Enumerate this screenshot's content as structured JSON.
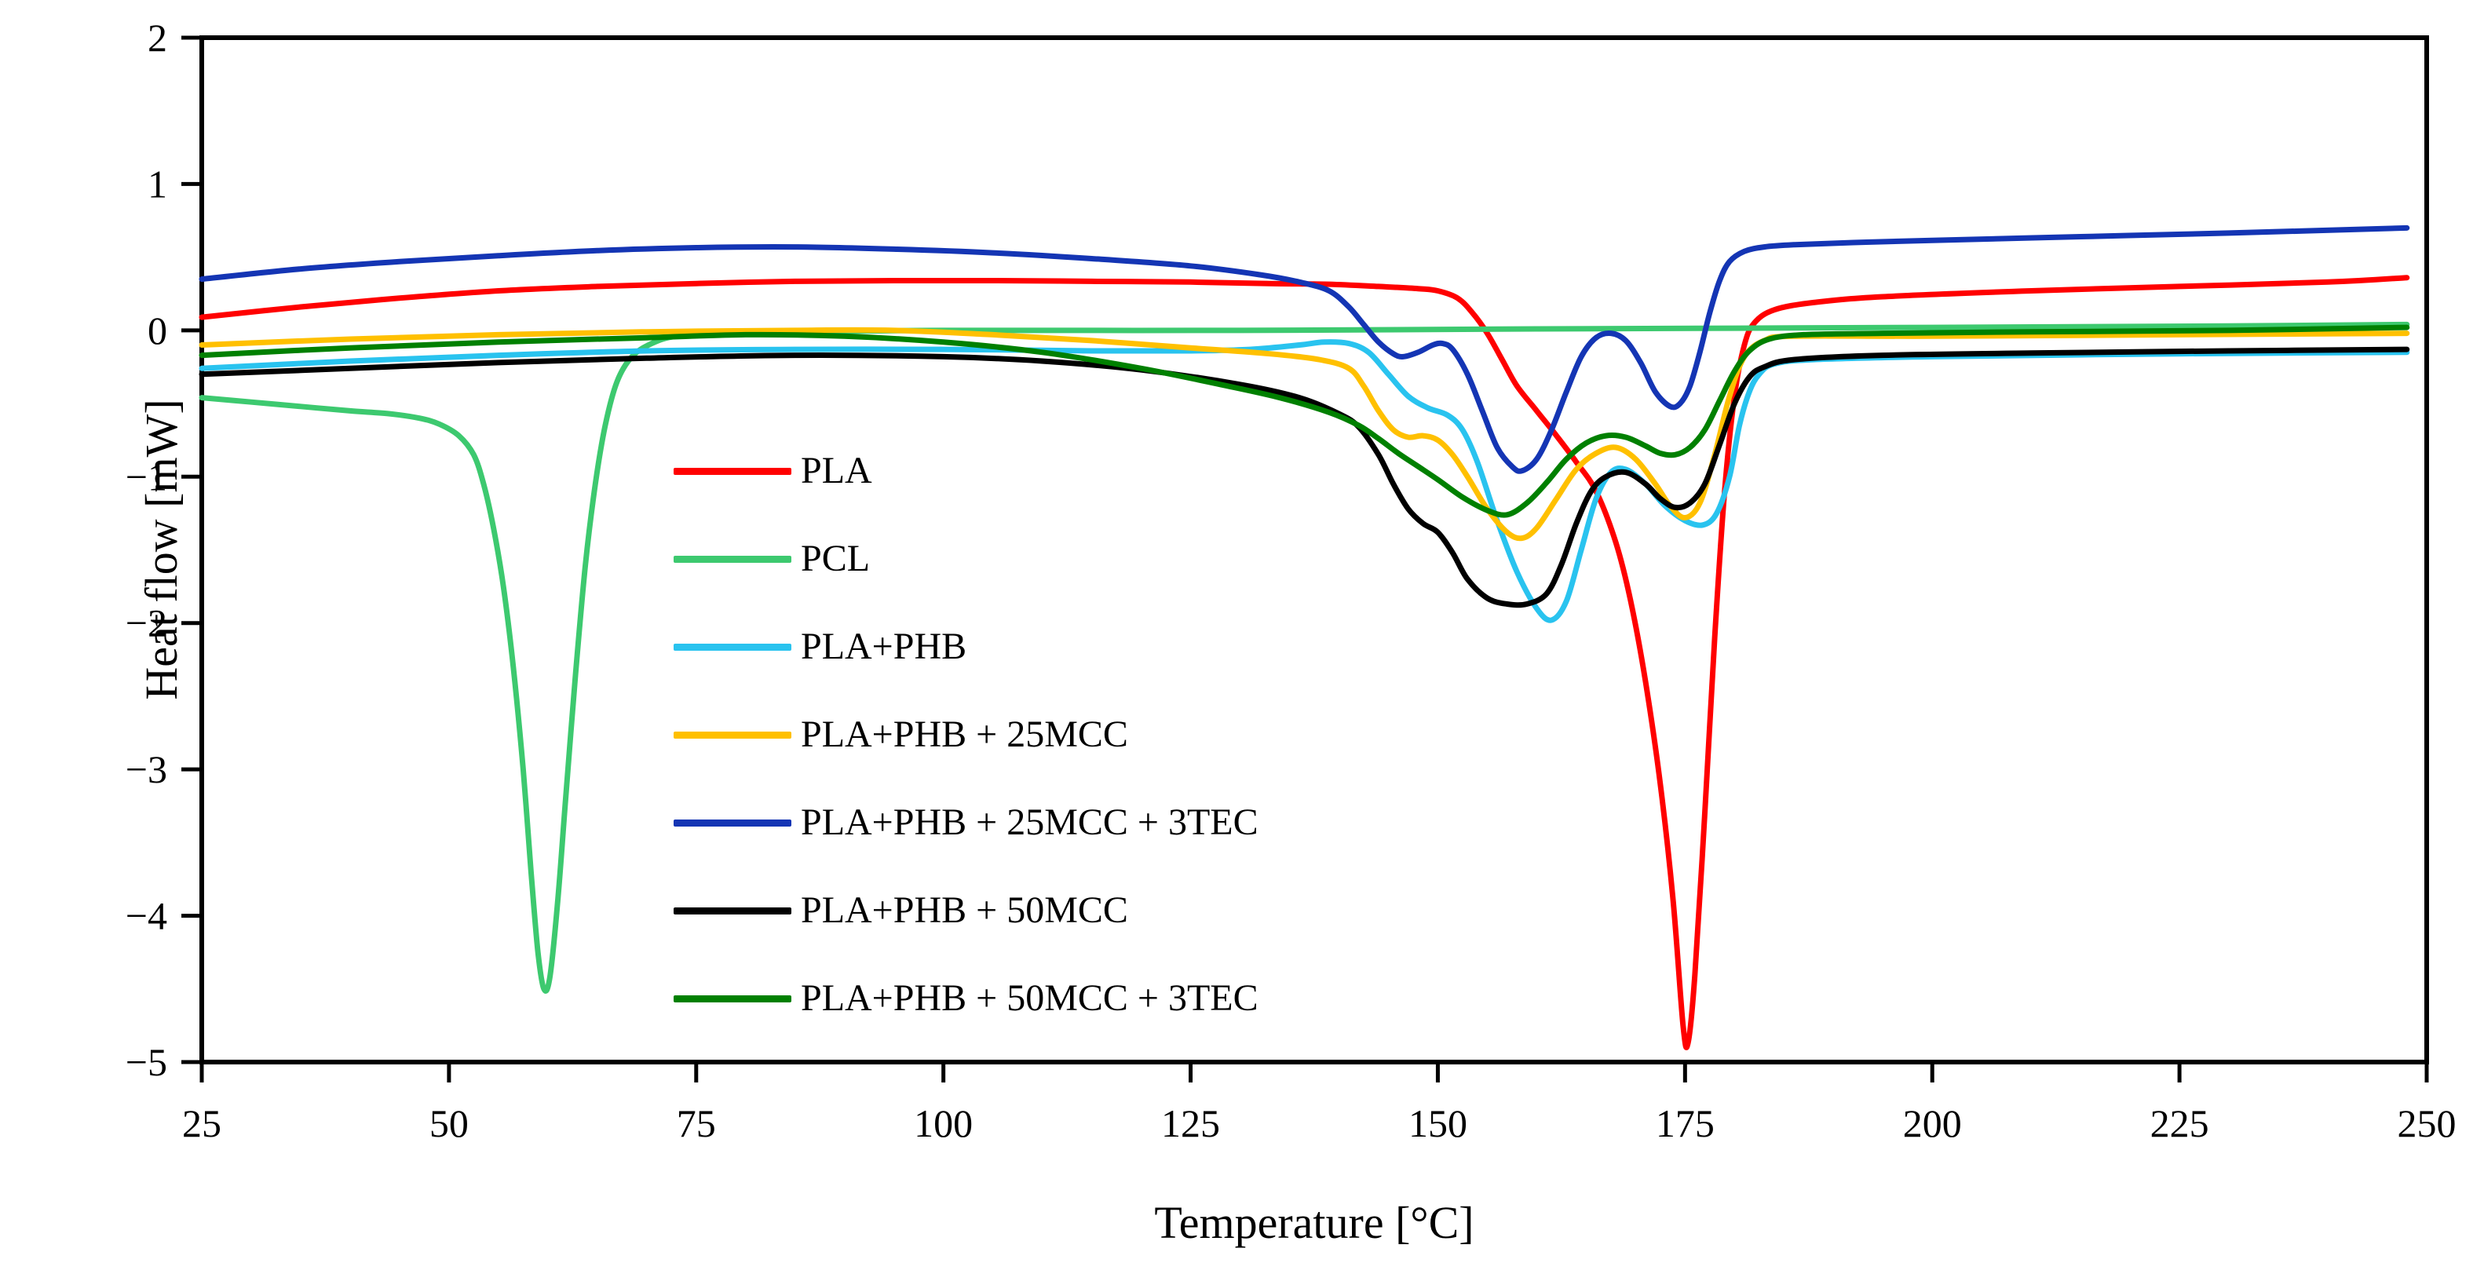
{
  "figure": {
    "background": "#FFFFFF"
  },
  "chart_data": {
    "type": "line",
    "title": "",
    "xlabel": "Temperature [°C]",
    "ylabel": "Heat flow [mW]",
    "xlim": [
      25,
      250
    ],
    "ylim": [
      -5,
      2
    ],
    "x_ticks": [
      25,
      50,
      75,
      100,
      125,
      150,
      175,
      200,
      225,
      250
    ],
    "y_ticks": [
      2,
      1,
      0,
      -1,
      -2,
      -3,
      -4,
      -5
    ],
    "grid": false,
    "legend_position": "inside-left-middle",
    "axis_color": "#000000",
    "series": [
      {
        "name": "PLA",
        "color": "#FF0000",
        "points": [
          [
            25,
            0.09
          ],
          [
            35,
            0.16
          ],
          [
            45,
            0.22
          ],
          [
            55,
            0.27
          ],
          [
            65,
            0.3
          ],
          [
            75,
            0.32
          ],
          [
            85,
            0.335
          ],
          [
            95,
            0.34
          ],
          [
            105,
            0.34
          ],
          [
            115,
            0.335
          ],
          [
            125,
            0.33
          ],
          [
            133,
            0.32
          ],
          [
            139,
            0.315
          ],
          [
            144,
            0.3
          ],
          [
            148,
            0.285
          ],
          [
            150,
            0.27
          ],
          [
            152,
            0.22
          ],
          [
            153.5,
            0.12
          ],
          [
            155,
            -0.02
          ],
          [
            156.5,
            -0.2
          ],
          [
            158,
            -0.38
          ],
          [
            160,
            -0.55
          ],
          [
            162,
            -0.72
          ],
          [
            164,
            -0.9
          ],
          [
            166,
            -1.1
          ],
          [
            168,
            -1.45
          ],
          [
            169.5,
            -1.85
          ],
          [
            171,
            -2.4
          ],
          [
            172.5,
            -3.1
          ],
          [
            173.8,
            -3.9
          ],
          [
            174.8,
            -4.75
          ],
          [
            175.3,
            -4.87
          ],
          [
            176,
            -4.4
          ],
          [
            177,
            -3.3
          ],
          [
            178,
            -2.1
          ],
          [
            179,
            -1.1
          ],
          [
            180,
            -0.45
          ],
          [
            181,
            -0.1
          ],
          [
            182,
            0.05
          ],
          [
            184,
            0.14
          ],
          [
            188,
            0.19
          ],
          [
            195,
            0.23
          ],
          [
            210,
            0.27
          ],
          [
            225,
            0.3
          ],
          [
            240,
            0.33
          ],
          [
            248,
            0.36
          ]
        ]
      },
      {
        "name": "PCL",
        "color": "#3DC96F",
        "points": [
          [
            25,
            -0.46
          ],
          [
            30,
            -0.49
          ],
          [
            35,
            -0.52
          ],
          [
            40,
            -0.55
          ],
          [
            44,
            -0.57
          ],
          [
            47,
            -0.6
          ],
          [
            49,
            -0.64
          ],
          [
            51,
            -0.72
          ],
          [
            52.5,
            -0.85
          ],
          [
            53.5,
            -1.05
          ],
          [
            54.5,
            -1.35
          ],
          [
            55.5,
            -1.75
          ],
          [
            56.5,
            -2.3
          ],
          [
            57.5,
            -3.0
          ],
          [
            58.3,
            -3.7
          ],
          [
            59,
            -4.25
          ],
          [
            59.6,
            -4.5
          ],
          [
            60.2,
            -4.42
          ],
          [
            61,
            -3.9
          ],
          [
            61.8,
            -3.2
          ],
          [
            62.8,
            -2.35
          ],
          [
            63.8,
            -1.6
          ],
          [
            64.8,
            -1.05
          ],
          [
            65.8,
            -0.65
          ],
          [
            67,
            -0.35
          ],
          [
            68.5,
            -0.18
          ],
          [
            70.5,
            -0.09
          ],
          [
            73,
            -0.04
          ],
          [
            78,
            -0.02
          ],
          [
            85,
            -0.01
          ],
          [
            100,
            0.0
          ],
          [
            130,
            0.0
          ],
          [
            160,
            0.01
          ],
          [
            200,
            0.02
          ],
          [
            230,
            0.03
          ],
          [
            248,
            0.04
          ]
        ]
      },
      {
        "name": "PLA+PHB",
        "color": "#29C3EF",
        "points": [
          [
            25,
            -0.26
          ],
          [
            40,
            -0.21
          ],
          [
            55,
            -0.17
          ],
          [
            70,
            -0.14
          ],
          [
            85,
            -0.13
          ],
          [
            100,
            -0.13
          ],
          [
            115,
            -0.14
          ],
          [
            125,
            -0.14
          ],
          [
            131,
            -0.13
          ],
          [
            136,
            -0.1
          ],
          [
            138.5,
            -0.08
          ],
          [
            141,
            -0.09
          ],
          [
            143,
            -0.15
          ],
          [
            145,
            -0.3
          ],
          [
            147,
            -0.45
          ],
          [
            149,
            -0.53
          ],
          [
            151,
            -0.58
          ],
          [
            152.5,
            -0.68
          ],
          [
            154,
            -0.9
          ],
          [
            156,
            -1.3
          ],
          [
            158,
            -1.65
          ],
          [
            160,
            -1.9
          ],
          [
            161.5,
            -1.98
          ],
          [
            163,
            -1.85
          ],
          [
            164.5,
            -1.5
          ],
          [
            166,
            -1.15
          ],
          [
            167.5,
            -0.97
          ],
          [
            169,
            -0.95
          ],
          [
            171,
            -1.05
          ],
          [
            173,
            -1.2
          ],
          [
            175,
            -1.3
          ],
          [
            176.8,
            -1.33
          ],
          [
            178.2,
            -1.25
          ],
          [
            179.5,
            -1.0
          ],
          [
            180.5,
            -0.65
          ],
          [
            181.5,
            -0.42
          ],
          [
            182.5,
            -0.3
          ],
          [
            184,
            -0.23
          ],
          [
            188,
            -0.2
          ],
          [
            200,
            -0.18
          ],
          [
            225,
            -0.16
          ],
          [
            248,
            -0.15
          ]
        ]
      },
      {
        "name": "PLA+PHB + 25MCC",
        "color": "#FFC000",
        "points": [
          [
            25,
            -0.1
          ],
          [
            40,
            -0.06
          ],
          [
            55,
            -0.03
          ],
          [
            70,
            -0.01
          ],
          [
            85,
            0.0
          ],
          [
            95,
            0.0
          ],
          [
            105,
            -0.03
          ],
          [
            115,
            -0.07
          ],
          [
            125,
            -0.12
          ],
          [
            133,
            -0.16
          ],
          [
            138,
            -0.2
          ],
          [
            141,
            -0.26
          ],
          [
            142.5,
            -0.38
          ],
          [
            144,
            -0.55
          ],
          [
            145.5,
            -0.68
          ],
          [
            147,
            -0.73
          ],
          [
            148.5,
            -0.72
          ],
          [
            150,
            -0.75
          ],
          [
            151.5,
            -0.85
          ],
          [
            153,
            -1.0
          ],
          [
            155,
            -1.22
          ],
          [
            157,
            -1.38
          ],
          [
            158.5,
            -1.42
          ],
          [
            160,
            -1.35
          ],
          [
            162,
            -1.15
          ],
          [
            164,
            -0.95
          ],
          [
            166,
            -0.84
          ],
          [
            168,
            -0.8
          ],
          [
            170,
            -0.88
          ],
          [
            172,
            -1.05
          ],
          [
            173.5,
            -1.2
          ],
          [
            175,
            -1.28
          ],
          [
            176.5,
            -1.18
          ],
          [
            178,
            -0.85
          ],
          [
            179.5,
            -0.45
          ],
          [
            181,
            -0.18
          ],
          [
            183,
            -0.07
          ],
          [
            186,
            -0.04
          ],
          [
            200,
            -0.04
          ],
          [
            225,
            -0.03
          ],
          [
            248,
            -0.02
          ]
        ]
      },
      {
        "name": "PLA+PHB + 25MCC + 3TEC",
        "color": "#1435B4",
        "points": [
          [
            25,
            0.35
          ],
          [
            35,
            0.42
          ],
          [
            45,
            0.47
          ],
          [
            55,
            0.51
          ],
          [
            65,
            0.545
          ],
          [
            75,
            0.565
          ],
          [
            85,
            0.57
          ],
          [
            95,
            0.555
          ],
          [
            105,
            0.53
          ],
          [
            115,
            0.49
          ],
          [
            125,
            0.44
          ],
          [
            132,
            0.38
          ],
          [
            136,
            0.33
          ],
          [
            139,
            0.27
          ],
          [
            141,
            0.16
          ],
          [
            142.5,
            0.04
          ],
          [
            144,
            -0.08
          ],
          [
            145.5,
            -0.16
          ],
          [
            146.5,
            -0.18
          ],
          [
            148,
            -0.15
          ],
          [
            149.5,
            -0.1
          ],
          [
            150.5,
            -0.09
          ],
          [
            151.5,
            -0.13
          ],
          [
            153,
            -0.3
          ],
          [
            154.5,
            -0.55
          ],
          [
            156,
            -0.8
          ],
          [
            157.5,
            -0.93
          ],
          [
            158.5,
            -0.96
          ],
          [
            160,
            -0.88
          ],
          [
            161.5,
            -0.68
          ],
          [
            163,
            -0.42
          ],
          [
            164.5,
            -0.18
          ],
          [
            166,
            -0.05
          ],
          [
            167.5,
            -0.02
          ],
          [
            169,
            -0.07
          ],
          [
            170.5,
            -0.22
          ],
          [
            172,
            -0.42
          ],
          [
            173.5,
            -0.52
          ],
          [
            174.5,
            -0.5
          ],
          [
            175.5,
            -0.38
          ],
          [
            176.5,
            -0.15
          ],
          [
            177.5,
            0.12
          ],
          [
            178.5,
            0.34
          ],
          [
            179.5,
            0.47
          ],
          [
            181,
            0.54
          ],
          [
            183,
            0.57
          ],
          [
            186,
            0.585
          ],
          [
            192,
            0.6
          ],
          [
            200,
            0.615
          ],
          [
            215,
            0.64
          ],
          [
            230,
            0.665
          ],
          [
            248,
            0.7
          ]
        ]
      },
      {
        "name": "PLA+PHB + 50MCC",
        "color": "#000000",
        "points": [
          [
            25,
            -0.3
          ],
          [
            40,
            -0.26
          ],
          [
            55,
            -0.22
          ],
          [
            70,
            -0.19
          ],
          [
            85,
            -0.17
          ],
          [
            100,
            -0.18
          ],
          [
            110,
            -0.21
          ],
          [
            120,
            -0.27
          ],
          [
            130,
            -0.37
          ],
          [
            136,
            -0.46
          ],
          [
            140,
            -0.57
          ],
          [
            142,
            -0.66
          ],
          [
            144,
            -0.85
          ],
          [
            145.5,
            -1.05
          ],
          [
            147,
            -1.22
          ],
          [
            148.5,
            -1.32
          ],
          [
            150,
            -1.38
          ],
          [
            151.5,
            -1.52
          ],
          [
            153,
            -1.7
          ],
          [
            155,
            -1.83
          ],
          [
            157,
            -1.87
          ],
          [
            159,
            -1.87
          ],
          [
            161,
            -1.8
          ],
          [
            162.5,
            -1.6
          ],
          [
            164,
            -1.32
          ],
          [
            165.5,
            -1.1
          ],
          [
            167,
            -1.0
          ],
          [
            169,
            -0.97
          ],
          [
            171,
            -1.05
          ],
          [
            172.5,
            -1.15
          ],
          [
            174,
            -1.21
          ],
          [
            175.5,
            -1.18
          ],
          [
            177,
            -1.05
          ],
          [
            178.5,
            -0.78
          ],
          [
            180,
            -0.5
          ],
          [
            181.5,
            -0.32
          ],
          [
            183,
            -0.25
          ],
          [
            186,
            -0.2
          ],
          [
            195,
            -0.17
          ],
          [
            210,
            -0.155
          ],
          [
            230,
            -0.14
          ],
          [
            248,
            -0.13
          ]
        ]
      },
      {
        "name": "PLA+PHB + 50MCC + 3TEC",
        "color": "#008000",
        "points": [
          [
            25,
            -0.17
          ],
          [
            40,
            -0.12
          ],
          [
            55,
            -0.08
          ],
          [
            70,
            -0.05
          ],
          [
            80,
            -0.03
          ],
          [
            90,
            -0.04
          ],
          [
            100,
            -0.08
          ],
          [
            110,
            -0.15
          ],
          [
            120,
            -0.26
          ],
          [
            128,
            -0.37
          ],
          [
            134,
            -0.46
          ],
          [
            139,
            -0.56
          ],
          [
            142,
            -0.65
          ],
          [
            144,
            -0.74
          ],
          [
            146,
            -0.84
          ],
          [
            148,
            -0.93
          ],
          [
            150,
            -1.02
          ],
          [
            152.5,
            -1.14
          ],
          [
            155,
            -1.23
          ],
          [
            157,
            -1.26
          ],
          [
            159,
            -1.18
          ],
          [
            161,
            -1.04
          ],
          [
            163,
            -0.88
          ],
          [
            165,
            -0.77
          ],
          [
            167,
            -0.72
          ],
          [
            169,
            -0.73
          ],
          [
            171,
            -0.79
          ],
          [
            172.5,
            -0.84
          ],
          [
            174,
            -0.85
          ],
          [
            175.5,
            -0.8
          ],
          [
            177,
            -0.68
          ],
          [
            178.5,
            -0.48
          ],
          [
            180,
            -0.28
          ],
          [
            181.5,
            -0.14
          ],
          [
            183.5,
            -0.06
          ],
          [
            187,
            -0.03
          ],
          [
            195,
            -0.02
          ],
          [
            210,
            -0.01
          ],
          [
            230,
            0.0
          ],
          [
            248,
            0.02
          ]
        ]
      }
    ]
  }
}
